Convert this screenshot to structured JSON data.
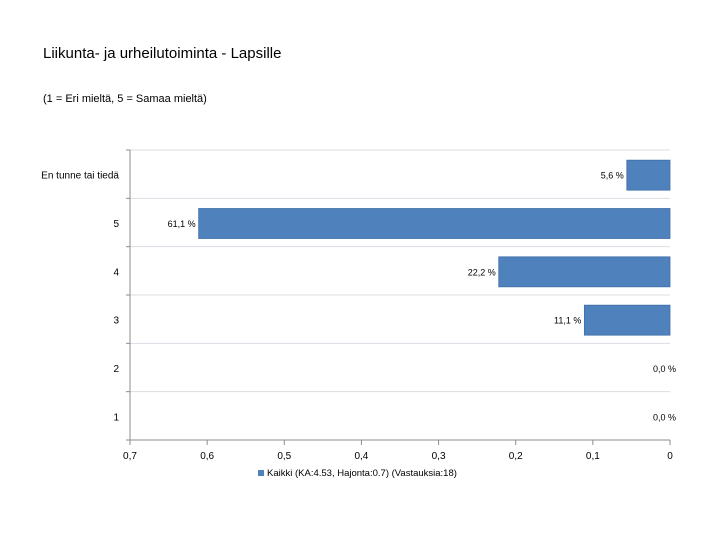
{
  "title": "Liikunta- ja urheilutoiminta - Lapsille",
  "subtitle": "(1 = Eri mieltä, 5 = Samaa mieltä)",
  "colors": {
    "bar": "#4f81bd",
    "bar_stroke": "#3f6fa8",
    "grid": "#d9dde2",
    "axis": "#8c8c8c"
  },
  "chart_data": {
    "type": "bar",
    "orientation": "horizontal",
    "title": "Liikunta- ja urheilutoiminta - Lapsille",
    "subtitle": "(1 = Eri mieltä, 5 = Samaa mieltä)",
    "categories": [
      "En tunne tai tiedä",
      "5",
      "4",
      "3",
      "2",
      "1"
    ],
    "series": [
      {
        "name": "Kaikki (KA:4.53, Hajonta:0.7) (Vastauksia:18)",
        "values": [
          0.056,
          0.611,
          0.222,
          0.111,
          0.0,
          0.0
        ],
        "labels": [
          "5,6 %",
          "61,1 %",
          "22,2 %",
          "11,1 %",
          "0,0 %",
          "0,0 %"
        ]
      }
    ],
    "xlim": [
      0.7,
      0
    ],
    "x_reversed": true,
    "ticks": [
      0.7,
      0.6,
      0.5,
      0.4,
      0.3,
      0.2,
      0.1,
      0
    ],
    "tick_labels": [
      "0,7",
      "0,6",
      "0,5",
      "0,4",
      "0,3",
      "0,2",
      "0,1",
      "0"
    ],
    "grid": true,
    "legend_position": "bottom"
  }
}
